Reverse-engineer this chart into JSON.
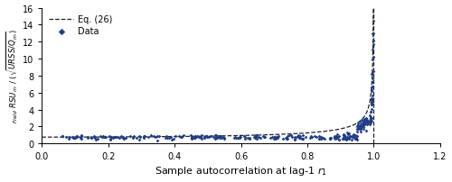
{
  "xlabel": "Sample autocorrelation at lag-1 $r_1$",
  "ylabel": "$_{Field}$ $RSU_m$ / ($\\sqrt{URSS/Q_m}$)",
  "xlim": [
    0.0,
    1.2
  ],
  "ylim": [
    0.0,
    16
  ],
  "yticks": [
    0,
    2,
    4,
    6,
    8,
    10,
    12,
    14,
    16
  ],
  "xticks": [
    0.0,
    0.2,
    0.4,
    0.6,
    0.8,
    1.0,
    1.2
  ],
  "data_color": "#1f3d8a",
  "line_color": "#222222",
  "vline_x": 1.0,
  "legend_labels": [
    "Data",
    "Eq. (26)"
  ],
  "background_color": "#ffffff",
  "eq26_level": 0.75,
  "seed": 17
}
